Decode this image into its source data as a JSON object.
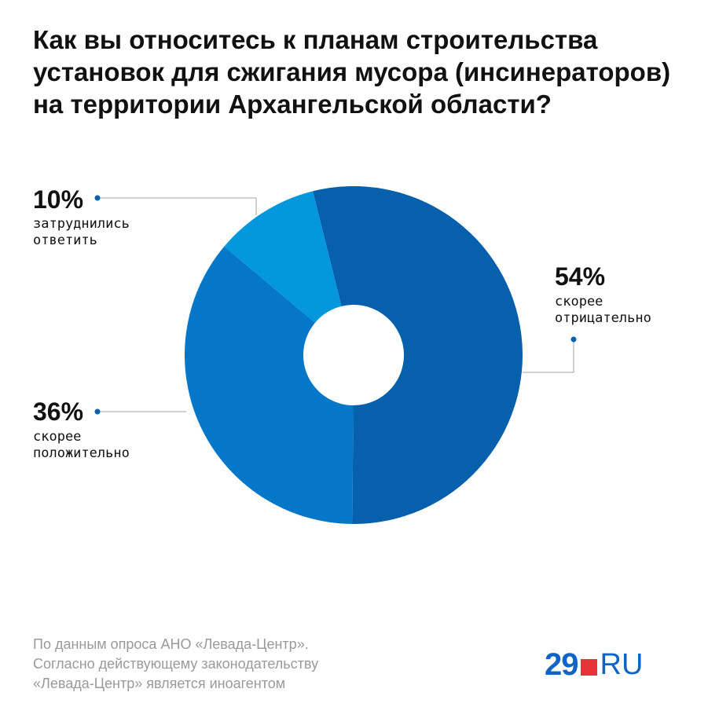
{
  "title_lines": [
    "Как вы относитесь к планам строительства",
    "установок для сжигания мусора (инсинераторов)",
    "на территории Архангельской области?"
  ],
  "chart_data": {
    "type": "pie",
    "variant": "donut",
    "categories": [
      "скорее отрицательно",
      "скорее положительно",
      "затруднились ответить"
    ],
    "values": [
      54,
      36,
      10
    ],
    "unit": "%",
    "labels": [
      {
        "pct": "54%",
        "lines": [
          "скорее",
          "отрицательно"
        ]
      },
      {
        "pct": "36%",
        "lines": [
          "скорее",
          "положительно"
        ]
      },
      {
        "pct": "10%",
        "lines": [
          "затруднились",
          "ответить"
        ]
      }
    ],
    "colors": [
      "#0660ac",
      "#0577c9",
      "#0597dc"
    ],
    "start_angle_deg": -14
  },
  "footer_lines": [
    "По данным опроса АНО «Левада-Центр».",
    "Согласно действующему законодательству",
    "«Левада-Центр» является иноагентом"
  ],
  "logo": {
    "number": "29",
    "suffix": "RU",
    "colors": {
      "number": "#1064c3",
      "square": "#e8333b"
    }
  }
}
